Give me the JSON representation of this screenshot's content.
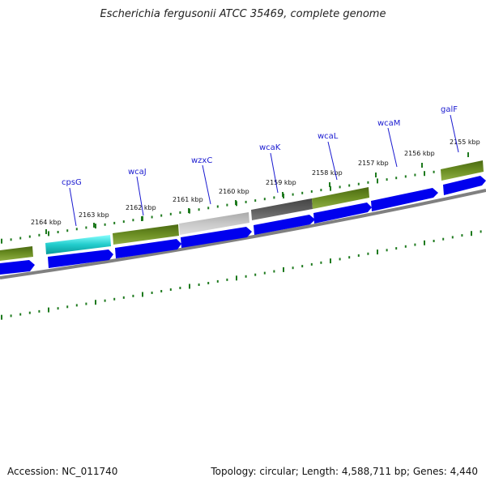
{
  "title": "Escherichia fergusonii ATCC 35469, complete genome",
  "footer": {
    "accession": "Accession: NC_011740",
    "summary": "Topology: circular; Length: 4,588,711 bp; Genes: 4,440"
  },
  "ruler_labels": [
    "2164 kbp",
    "2163 kbp",
    "2162 kbp",
    "2161 kbp",
    "2160 kbp",
    "2159 kbp",
    "2158 kbp",
    "2157 kbp",
    "2156 kbp",
    "2155 kbp"
  ],
  "genes": [
    "cpsG",
    "wcaJ",
    "wzxC",
    "wcaK",
    "wcaL",
    "wcaM",
    "galF"
  ],
  "colors": {
    "forward_arrow": "#0000ee",
    "ruler": "#1e7a1e",
    "backbone": "#808080",
    "cpsG": "#22cccc",
    "olive": "#6b8e23",
    "light_gray": "#c0c0c0",
    "dark_gray": "#555555"
  }
}
